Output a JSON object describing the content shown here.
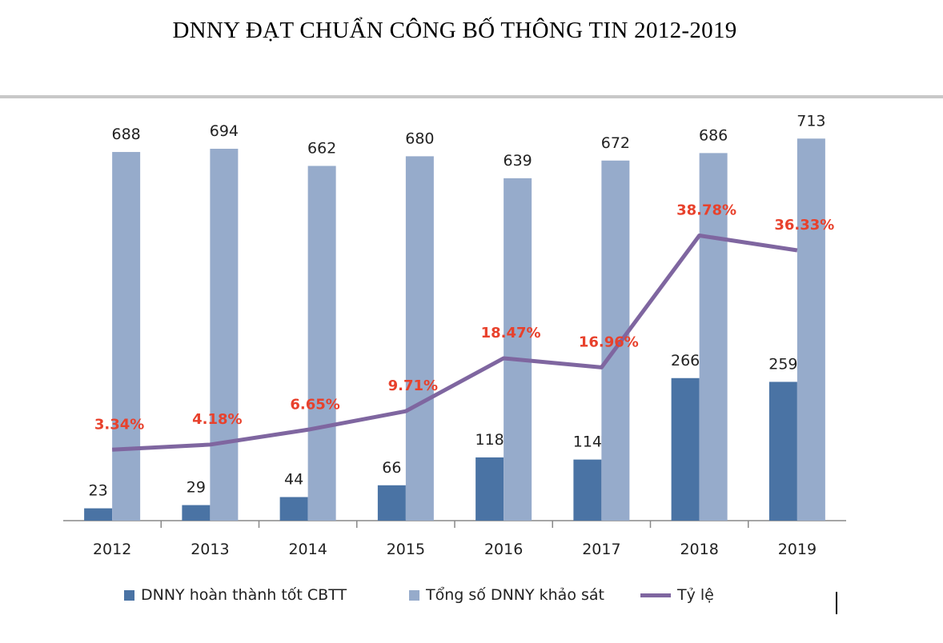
{
  "chart_data": {
    "type": "bar+line",
    "title": "DNNY ĐẠT CHUẨN CÔNG BỐ THÔNG TIN 2012-2019",
    "categories": [
      "2012",
      "2013",
      "2014",
      "2015",
      "2016",
      "2017",
      "2018",
      "2019"
    ],
    "series": [
      {
        "name": "DNNY hoàn thành tốt CBTT",
        "type": "bar",
        "color": "#4A73A4",
        "values": [
          23,
          29,
          44,
          66,
          118,
          114,
          266,
          259
        ]
      },
      {
        "name": "Tổng số DNNY khảo sát",
        "type": "bar",
        "color": "#96ABCB",
        "values": [
          688,
          694,
          662,
          680,
          639,
          672,
          686,
          713
        ]
      },
      {
        "name": "Tỷ lệ",
        "type": "line",
        "axis": "secondary",
        "color": "#7F66A0",
        "label_color": "#E8412C",
        "values": [
          3.34,
          4.18,
          6.65,
          9.71,
          18.47,
          16.96,
          38.78,
          36.33
        ],
        "labels": [
          "3.34%",
          "4.18%",
          "6.65%",
          "9.71%",
          "18.47%",
          "16.96%",
          "38.78%",
          "36.33%"
        ]
      }
    ],
    "ylim": [
      0,
      900
    ],
    "y2lim": [
      -8.4,
      71.4
    ],
    "grid": false,
    "legend": "bottom"
  }
}
